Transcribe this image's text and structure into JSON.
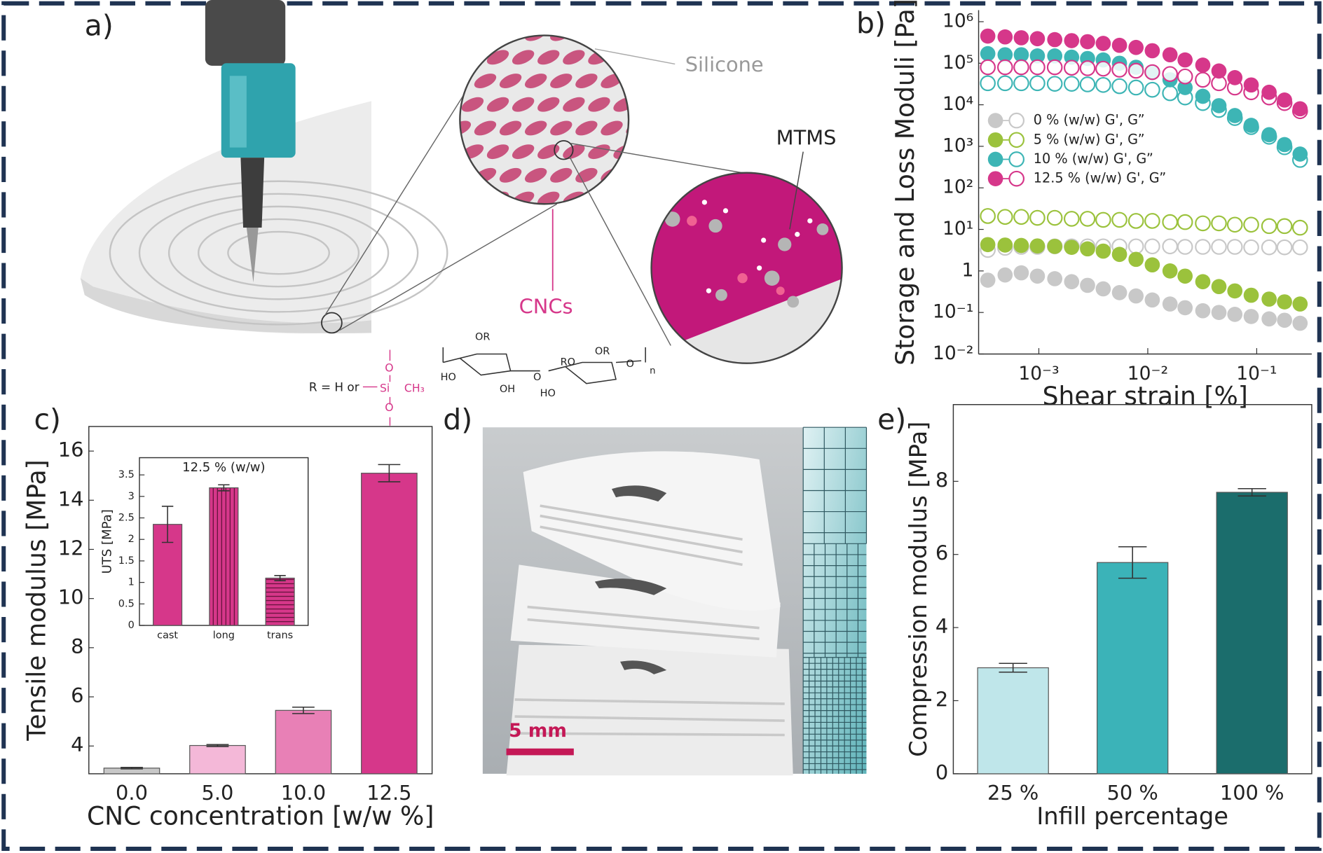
{
  "illustration": {
    "panel_a": {
      "label": "a)",
      "silicone": "Silicone",
      "mtms": "MTMS",
      "cncs": "CNCs",
      "r_def": "R = H or",
      "siloxane": [
        "O",
        "Si",
        "CH₃",
        "O"
      ],
      "cellulose": [
        "OR",
        "HO",
        "OH",
        "O",
        "RO",
        "OR",
        "O",
        "HO",
        "n"
      ]
    },
    "panel_d": {
      "label": "d)",
      "scale_bar": "5 mm"
    }
  },
  "chart_data": [
    {
      "type": "scatter",
      "label": "b)",
      "xlabel": "Shear strain [%]",
      "ylabel": "Storage and Loss Moduli [Pa]",
      "xlog": true,
      "ylog": true,
      "legend": "center-left",
      "x": [
        0.00034,
        0.00049,
        0.00069,
        0.00097,
        0.0014,
        0.002,
        0.0028,
        0.0039,
        0.0055,
        0.0078,
        0.011,
        0.016,
        0.022,
        0.032,
        0.045,
        0.063,
        0.089,
        0.13,
        0.18,
        0.25
      ],
      "xlim": [
        0.00028,
        0.32
      ],
      "xticks": [
        {
          "value": 0.001,
          "label": "10⁻³"
        },
        {
          "value": 0.01,
          "label": "10⁻²"
        },
        {
          "value": 0.1,
          "label": "10⁻¹"
        }
      ],
      "ylim": [
        0.01,
        1900000
      ],
      "yticks": [
        {
          "value": 0.01,
          "label": "10⁻²"
        },
        {
          "value": 0.1,
          "label": "10⁻¹"
        },
        1,
        {
          "value": 10,
          "label": "10¹"
        },
        {
          "value": 100,
          "label": "10²"
        },
        {
          "value": 1000,
          "label": "10³"
        },
        {
          "value": 10000,
          "label": "10⁴"
        },
        {
          "value": 100000,
          "label": "10⁵"
        },
        {
          "value": 1000000,
          "label": "10⁶"
        }
      ],
      "series": [
        {
          "name": "0 % (w/w) G', G”",
          "color": "#c8c8c8",
          "values": [
            0.6,
            0.8,
            0.9,
            0.75,
            0.65,
            0.55,
            0.45,
            0.37,
            0.3,
            0.25,
            0.2,
            0.16,
            0.13,
            0.11,
            0.1,
            0.09,
            0.08,
            0.07,
            0.065,
            0.055
          ],
          "values_loss": [
            3.2,
            3.6,
            3.8,
            3.8,
            3.9,
            3.9,
            3.9,
            3.9,
            3.9,
            3.9,
            3.9,
            3.9,
            3.8,
            3.8,
            3.8,
            3.8,
            3.7,
            3.7,
            3.7,
            3.7
          ]
        },
        {
          "name": "5 % (w/w) G', G”",
          "color": "#9bc23c",
          "values": [
            4.3,
            4.2,
            4.1,
            4.0,
            3.9,
            3.7,
            3.4,
            3.0,
            2.5,
            1.9,
            1.4,
            1.0,
            0.75,
            0.55,
            0.42,
            0.33,
            0.26,
            0.21,
            0.18,
            0.16
          ],
          "values_loss": [
            21,
            20,
            20,
            19,
            19,
            18,
            18,
            17,
            17,
            16,
            16,
            15,
            15,
            14,
            14,
            13,
            13,
            12,
            12,
            11
          ]
        },
        {
          "name": "10 % (w/w) G', G”",
          "color": "#3db5b5",
          "values": [
            170000,
            160000,
            160000,
            150000,
            150000,
            140000,
            130000,
            120000,
            100000,
            80000,
            60000,
            40000,
            26000,
            16000,
            9500,
            5500,
            3200,
            1900,
            1100,
            650
          ],
          "values_loss": [
            33000,
            33000,
            33000,
            33000,
            32000,
            32000,
            31000,
            30000,
            28000,
            26000,
            23000,
            19000,
            15000,
            11000,
            7500,
            4800,
            2900,
            1700,
            950,
            470
          ]
        },
        {
          "name": "12.5 % (w/w) G', G”",
          "color": "#d6378a",
          "values": [
            450000,
            430000,
            410000,
            390000,
            370000,
            350000,
            330000,
            300000,
            270000,
            240000,
            200000,
            160000,
            120000,
            90000,
            65000,
            45000,
            30000,
            20000,
            13000,
            8000
          ],
          "values_loss": [
            80000,
            80000,
            80000,
            80000,
            80000,
            78000,
            76000,
            74000,
            70000,
            66000,
            61000,
            55000,
            48000,
            40000,
            33000,
            26000,
            20000,
            15000,
            11000,
            7000
          ]
        }
      ]
    },
    {
      "type": "bar",
      "label": "c)",
      "xlabel": "CNC concentration [w/w %]",
      "ylabel": "Tensile modulus [MPa]",
      "categories": [
        "0.0",
        "5.0",
        "10.0",
        "12.5"
      ],
      "values": [
        3.1,
        4.02,
        5.45,
        15.1
      ],
      "errors": [
        0.03,
        0.04,
        0.13,
        0.35
      ],
      "colors": [
        "#c8c8c8",
        "#f4b8d8",
        "#e880b6",
        "#d6378a"
      ],
      "ylim": [
        2.87,
        17.0
      ],
      "yticks": [
        4,
        6,
        8,
        10,
        12,
        14,
        16
      ]
    },
    {
      "type": "bar",
      "title": "12.5 % (w/w)",
      "ylabel": "UTS [MPa]",
      "categories": [
        "cast",
        "long",
        "trans"
      ],
      "values": [
        2.35,
        3.2,
        1.1
      ],
      "errors": [
        0.42,
        0.07,
        0.06
      ],
      "color": "#d6378a",
      "hatch": [
        "none",
        "vertical",
        "horizontal"
      ],
      "ylim": [
        0,
        3.9
      ],
      "yticks": [
        0,
        0.5,
        1,
        1.5,
        2,
        2.5,
        3,
        3.5
      ]
    },
    {
      "type": "bar",
      "label": "e)",
      "xlabel": "Infill percentage",
      "ylabel": "Compression modulus [MPa]",
      "categories": [
        "25 %",
        "50 %",
        "100 %"
      ],
      "values": [
        2.9,
        5.78,
        7.7
      ],
      "errors": [
        0.12,
        0.43,
        0.1
      ],
      "colors": [
        "#bfe6ea",
        "#3bb3b8",
        "#1b6d6c"
      ],
      "ylim": [
        0,
        10.1
      ],
      "yticks": [
        0,
        2,
        4,
        6,
        8
      ]
    }
  ]
}
